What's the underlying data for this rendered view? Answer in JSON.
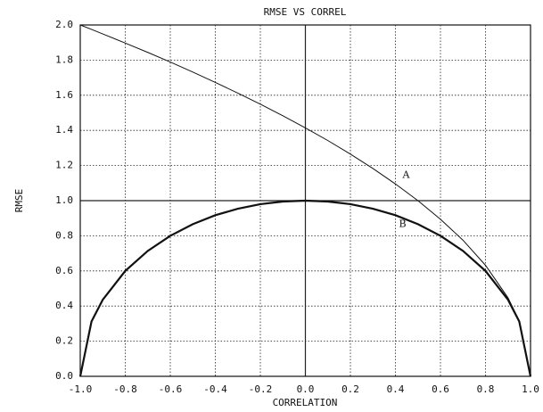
{
  "chart_data": {
    "type": "line",
    "title": "RMSE VS CORREL",
    "x_label": "CORRELATION",
    "y_label": "RMSE",
    "x": [
      -1.0,
      -0.95,
      -0.9,
      -0.8,
      -0.7,
      -0.6,
      -0.5,
      -0.4,
      -0.3,
      -0.2,
      -0.1,
      0.0,
      0.1,
      0.2,
      0.3,
      0.4,
      0.5,
      0.6,
      0.7,
      0.8,
      0.9,
      0.95,
      1.0
    ],
    "series": [
      {
        "name": "A",
        "color": "#111111",
        "values": [
          2.0,
          1.975,
          1.949,
          1.897,
          1.844,
          1.789,
          1.732,
          1.673,
          1.612,
          1.549,
          1.483,
          1.414,
          1.342,
          1.265,
          1.183,
          1.095,
          1.0,
          0.894,
          0.775,
          0.632,
          0.447,
          0.316,
          0.0
        ]
      },
      {
        "name": "B",
        "color": "#111111",
        "values": [
          0.0,
          0.312,
          0.436,
          0.6,
          0.714,
          0.8,
          0.866,
          0.917,
          0.954,
          0.98,
          0.995,
          1.0,
          0.995,
          0.98,
          0.954,
          0.917,
          0.866,
          0.8,
          0.714,
          0.6,
          0.436,
          0.312,
          0.0
        ]
      }
    ],
    "xlim": [
      -1.0,
      1.0
    ],
    "xticks": [
      {
        "value": -1.0,
        "label": "-1.0"
      },
      {
        "value": -0.8,
        "label": "-0.8"
      },
      {
        "value": -0.6,
        "label": "-0.6"
      },
      {
        "value": -0.4,
        "label": "-0.4"
      },
      {
        "value": -0.2,
        "label": "-0.2"
      },
      {
        "value": 0.0,
        "label": "0.0"
      },
      {
        "value": 0.2,
        "label": "0.2"
      },
      {
        "value": 0.4,
        "label": "0.4"
      },
      {
        "value": 0.6,
        "label": "0.6"
      },
      {
        "value": 0.8,
        "label": "0.8"
      },
      {
        "value": 1.0,
        "label": "1.0"
      }
    ],
    "ylim": [
      0.0,
      2.0
    ],
    "yticks": [
      {
        "value": 0.0,
        "label": "0.0"
      },
      {
        "value": 0.2,
        "label": "0.2"
      },
      {
        "value": 0.4,
        "label": "0.4"
      },
      {
        "value": 0.6,
        "label": "0.6"
      },
      {
        "value": 0.8,
        "label": "0.8"
      },
      {
        "value": 1.0,
        "label": "1.0"
      },
      {
        "value": 1.2,
        "label": "1.2"
      },
      {
        "value": 1.4,
        "label": "1.4"
      },
      {
        "value": 1.6,
        "label": "1.6"
      },
      {
        "value": 1.8,
        "label": "1.8"
      },
      {
        "value": 2.0,
        "label": "2.0"
      }
    ],
    "grid": true
  }
}
